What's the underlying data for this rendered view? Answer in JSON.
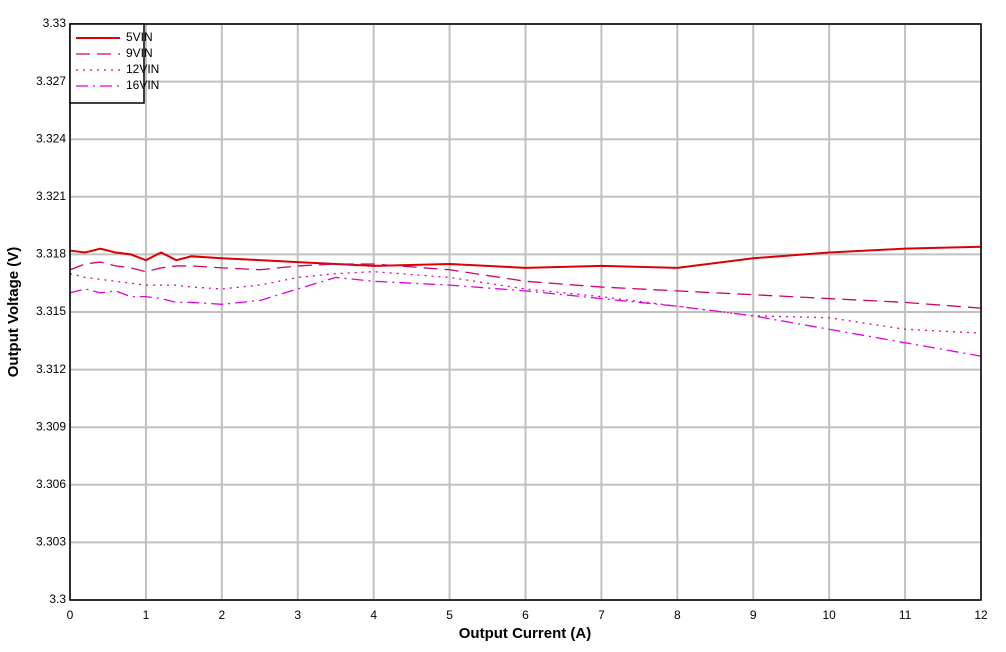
{
  "chart_data": {
    "type": "line",
    "x_label": "Output Current (A)",
    "y_label": "Output Voltage (V)",
    "x": [
      0,
      0.2,
      0.4,
      0.6,
      0.8,
      1,
      1.2,
      1.4,
      1.6,
      2,
      2.5,
      3,
      3.5,
      4,
      5,
      6,
      7,
      8,
      9,
      10,
      11,
      12
    ],
    "series": [
      {
        "name": "5VIN",
        "color": "#dd0000",
        "linestyle": "solid",
        "values": [
          3.3182,
          3.3181,
          3.3183,
          3.3181,
          3.318,
          3.3177,
          3.3181,
          3.3177,
          3.3179,
          3.3178,
          3.3177,
          3.3176,
          3.3175,
          3.3174,
          3.3175,
          3.3173,
          3.3174,
          3.3173,
          3.3178,
          3.3181,
          3.3183,
          3.3184
        ]
      },
      {
        "name": "9VIN",
        "color": "#d4006a",
        "linestyle": "dashed",
        "values": [
          3.3172,
          3.3175,
          3.3176,
          3.3174,
          3.3173,
          3.3171,
          3.3173,
          3.3174,
          3.3174,
          3.3173,
          3.3172,
          3.3174,
          3.3175,
          3.3175,
          3.3172,
          3.3166,
          3.3163,
          3.3161,
          3.3159,
          3.3157,
          3.3155,
          3.3152
        ]
      },
      {
        "name": "12VIN",
        "color": "#e000a0",
        "linestyle": "dotted",
        "values": [
          3.317,
          3.3168,
          3.3167,
          3.3166,
          3.3165,
          3.3164,
          3.3164,
          3.3164,
          3.3163,
          3.3162,
          3.3164,
          3.3168,
          3.317,
          3.3171,
          3.3168,
          3.3162,
          3.3158,
          3.3153,
          3.3148,
          3.3147,
          3.3141,
          3.3139
        ]
      },
      {
        "name": "16VIN",
        "color": "#e000e0",
        "linestyle": "dashdot",
        "values": [
          3.316,
          3.3162,
          3.316,
          3.3161,
          3.3158,
          3.3158,
          3.3157,
          3.3155,
          3.3155,
          3.3154,
          3.3156,
          3.3162,
          3.3168,
          3.3166,
          3.3164,
          3.3161,
          3.3157,
          3.3153,
          3.3148,
          3.3141,
          3.3134,
          3.3127
        ]
      }
    ],
    "xlim": [
      0,
      12
    ],
    "xticks": [
      0,
      1,
      2,
      3,
      4,
      5,
      6,
      7,
      8,
      9,
      10,
      11,
      12
    ],
    "ylim": [
      3.3,
      3.33
    ],
    "yticks": [
      3.3,
      3.303,
      3.306,
      3.309,
      3.312,
      3.315,
      3.318,
      3.321,
      3.324,
      3.327,
      3.33
    ],
    "grid": true,
    "legend": "upper left"
  }
}
